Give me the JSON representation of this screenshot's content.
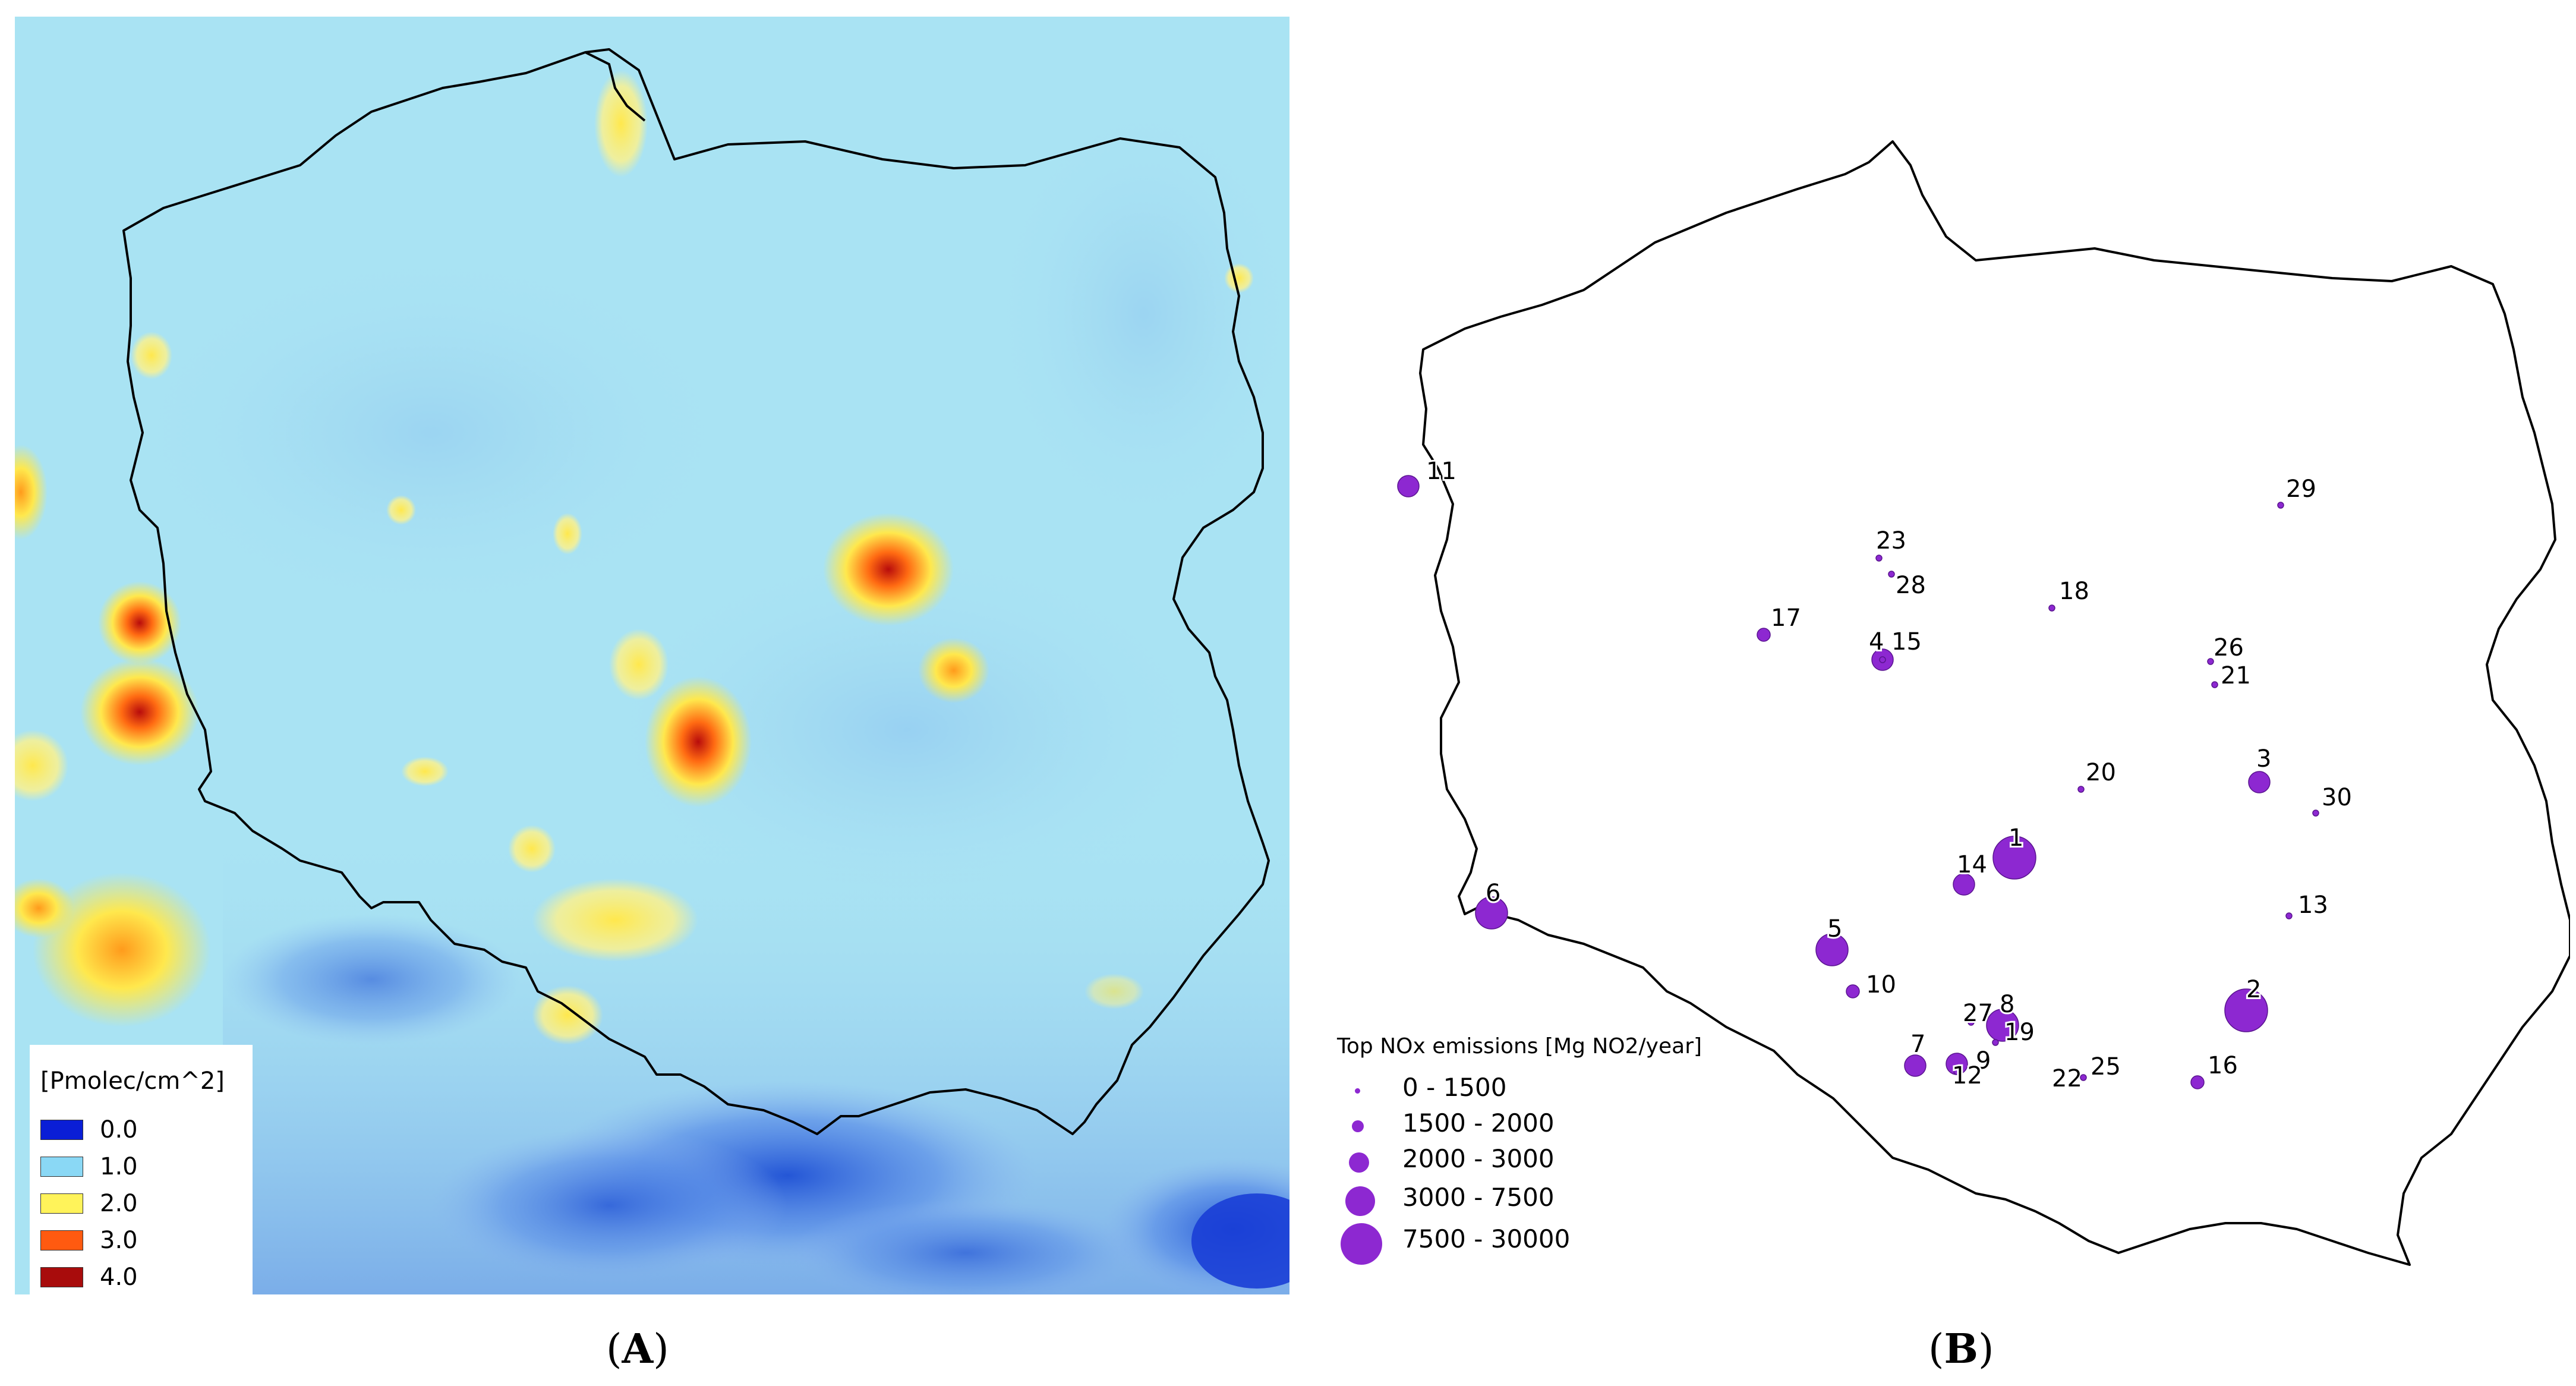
{
  "panel_a": {
    "caption": "A",
    "colorbar": {
      "title": "[Pmolec/cm^2]",
      "items": [
        {
          "label": "0.0",
          "color": "#0a1ed6"
        },
        {
          "label": "1.0",
          "color": "#8ad8f5"
        },
        {
          "label": "2.0",
          "color": "#fff35a"
        },
        {
          "label": "3.0",
          "color": "#ff5a10"
        },
        {
          "label": "4.0",
          "color": "#a80c0c"
        }
      ]
    },
    "hotspot_colors": {
      "background": "#a9e3f3",
      "yellow": "#ffe84d",
      "orange": "#ff9b1c",
      "red": "#c81414",
      "blue": "#2456d6"
    }
  },
  "panel_b": {
    "caption": "B",
    "point_color": "#8d28d1",
    "legend": {
      "title": "Top NOx emissions [Mg NO2/year]",
      "classes": [
        "0 - 1500",
        "1500 - 2000",
        "2000 - 3000",
        "3000 - 7500",
        "7500 - 30000"
      ]
    },
    "sources": [
      {
        "id": "1",
        "label": "1",
        "class": 5
      },
      {
        "id": "2",
        "label": "2",
        "class": 5
      },
      {
        "id": "3",
        "label": "3",
        "class": 3
      },
      {
        "id": "4",
        "label": "4",
        "class": 3
      },
      {
        "id": "5",
        "label": "5",
        "class": 4
      },
      {
        "id": "6",
        "label": "6",
        "class": 4
      },
      {
        "id": "7",
        "label": "7",
        "class": 3
      },
      {
        "id": "8",
        "label": "8",
        "class": 4
      },
      {
        "id": "9",
        "label": "9",
        "class": 3
      },
      {
        "id": "10",
        "label": "10",
        "class": 2
      },
      {
        "id": "11",
        "label": "11",
        "class": 3
      },
      {
        "id": "12",
        "label": "12",
        "class": 1
      },
      {
        "id": "13",
        "label": "13",
        "class": 1
      },
      {
        "id": "14",
        "label": "14",
        "class": 3
      },
      {
        "id": "15",
        "label": "15",
        "class": 1
      },
      {
        "id": "16",
        "label": "16",
        "class": 2
      },
      {
        "id": "17",
        "label": "17",
        "class": 2
      },
      {
        "id": "18",
        "label": "18",
        "class": 1
      },
      {
        "id": "19",
        "label": "19",
        "class": 1
      },
      {
        "id": "20",
        "label": "20",
        "class": 1
      },
      {
        "id": "21",
        "label": "21",
        "class": 1
      },
      {
        "id": "22",
        "label": "22",
        "class": 1
      },
      {
        "id": "23",
        "label": "23",
        "class": 1
      },
      {
        "id": "25",
        "label": "25",
        "class": 1
      },
      {
        "id": "26",
        "label": "26",
        "class": 1
      },
      {
        "id": "27",
        "label": "27",
        "class": 1
      },
      {
        "id": "28",
        "label": "28",
        "class": 1
      },
      {
        "id": "29",
        "label": "29",
        "class": 1
      },
      {
        "id": "30",
        "label": "30",
        "class": 1
      }
    ]
  }
}
